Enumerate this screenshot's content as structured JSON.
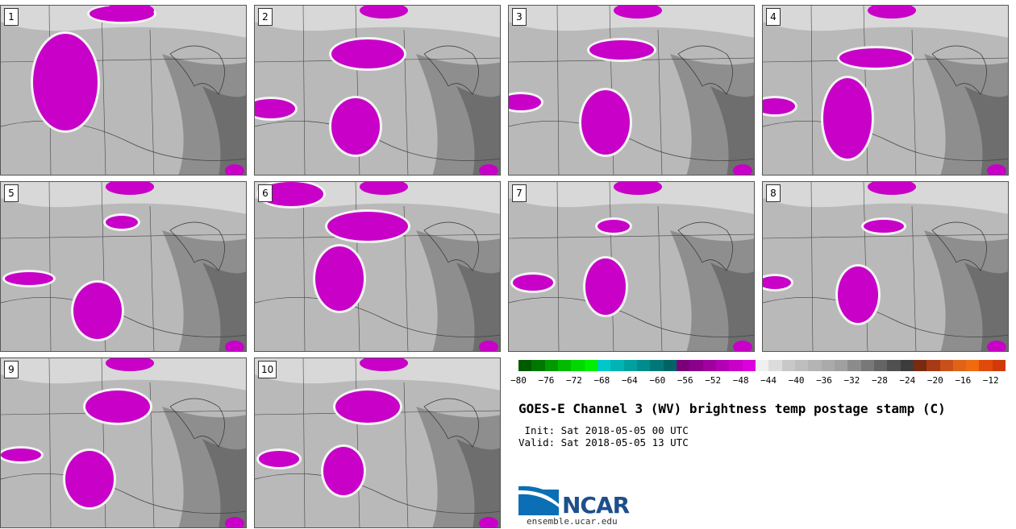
{
  "panels": [
    {
      "label": "1"
    },
    {
      "label": "2"
    },
    {
      "label": "3"
    },
    {
      "label": "4"
    },
    {
      "label": "5"
    },
    {
      "label": "6"
    },
    {
      "label": "7"
    },
    {
      "label": "8"
    },
    {
      "label": "9"
    },
    {
      "label": "10"
    }
  ],
  "colorbar": {
    "ticks": [
      "−80",
      "−76",
      "−72",
      "−68",
      "−64",
      "−60",
      "−56",
      "−52",
      "−48",
      "−44",
      "−40",
      "−36",
      "−32",
      "−28",
      "−24",
      "−20",
      "−16",
      "−12"
    ],
    "colors": [
      "#005a00",
      "#007800",
      "#009a00",
      "#00bb00",
      "#00d800",
      "#00ee00",
      "#00c8c8",
      "#00b4b4",
      "#00a0a0",
      "#008c8c",
      "#007878",
      "#006464",
      "#7a007a",
      "#8c008c",
      "#a000a0",
      "#b400b4",
      "#c800c8",
      "#dc00dc",
      "#f0f0f0",
      "#dcdcdc",
      "#c8c8c8",
      "#bebebe",
      "#b4b4b4",
      "#aaaaaa",
      "#a0a0a0",
      "#8c8c8c",
      "#787878",
      "#646464",
      "#505050",
      "#3c3c3c",
      "#7a2a10",
      "#a63a14",
      "#c8501a",
      "#e06418",
      "#f06a10",
      "#e04a0a",
      "#d03a08"
    ]
  },
  "title": "GOES-E Channel 3 (WV) brightness temp postage stamp (C)",
  "init": " Init: Sat 2018-05-05 00 UTC",
  "valid": "Valid: Sat 2018-05-05 13 UTC",
  "logo": {
    "text": "NCAR",
    "site": "ensemble.ucar.edu"
  }
}
